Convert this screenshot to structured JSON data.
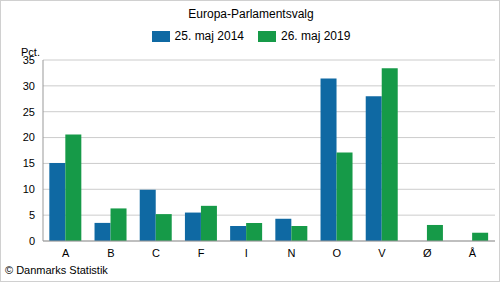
{
  "chart_data": {
    "type": "bar",
    "title": "Europa-Parlamentsvalg",
    "y_label": "Pct.",
    "source": "© Danmarks Statistik",
    "categories": [
      "A",
      "B",
      "C",
      "F",
      "I",
      "N",
      "O",
      "V",
      "Ø",
      "Å"
    ],
    "series": [
      {
        "name": "25. maj 2014",
        "color": "#0f69a3",
        "values": [
          15.1,
          3.5,
          9.9,
          5.5,
          2.9,
          4.3,
          31.4,
          28.0,
          null,
          null
        ]
      },
      {
        "name": "26. maj 2019",
        "color": "#169a48",
        "values": [
          20.6,
          6.3,
          5.2,
          6.8,
          3.5,
          2.9,
          17.1,
          33.4,
          3.1,
          1.6
        ]
      }
    ],
    "ylim": [
      0,
      35
    ],
    "yticks": [
      0,
      5,
      10,
      15,
      20,
      25,
      30,
      35
    ],
    "grid": true,
    "legend": "top"
  }
}
